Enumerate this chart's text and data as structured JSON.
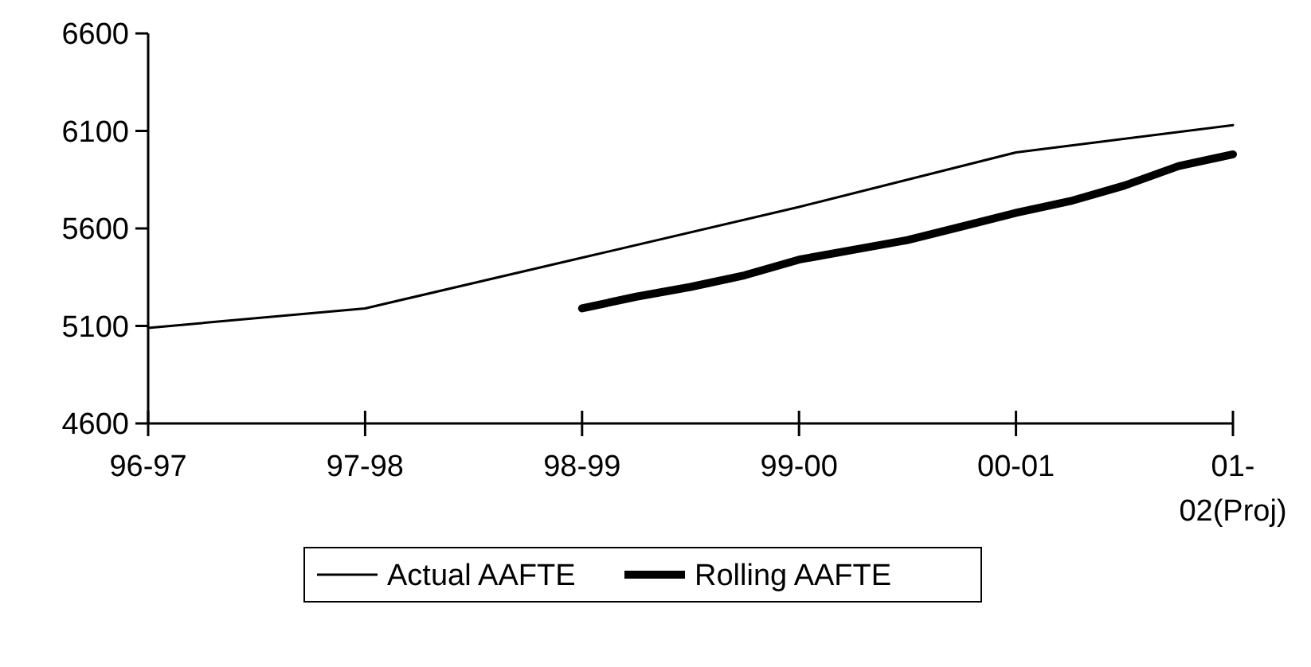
{
  "chart_data": {
    "type": "line",
    "categories": [
      "96-97",
      null,
      null,
      null,
      "97-98",
      null,
      null,
      null,
      "98-99",
      null,
      null,
      null,
      "99-00",
      null,
      null,
      null,
      "00-01",
      null,
      null,
      null,
      "01-02(Proj)"
    ],
    "ylim": [
      4600,
      6600
    ],
    "yticks": [
      4600,
      5100,
      5600,
      6100,
      6600
    ],
    "grid": false,
    "legend": "bottom",
    "marker": "none",
    "line_style": "solid",
    "series": [
      {
        "name": "Actual AAFTE",
        "color": "#000000",
        "values": [
          5090,
          null,
          null,
          null,
          5190,
          null,
          null,
          null,
          5450,
          null,
          null,
          null,
          5710,
          null,
          null,
          null,
          5990,
          null,
          null,
          null,
          6130
        ]
      },
      {
        "name": "Rolling AAFTE",
        "color": "#000000",
        "values": [
          null,
          null,
          null,
          null,
          null,
          null,
          null,
          null,
          5190,
          5250,
          5300,
          5360,
          5440,
          5490,
          5540,
          5610,
          5680,
          5740,
          5820,
          5920,
          5980
        ]
      }
    ]
  }
}
